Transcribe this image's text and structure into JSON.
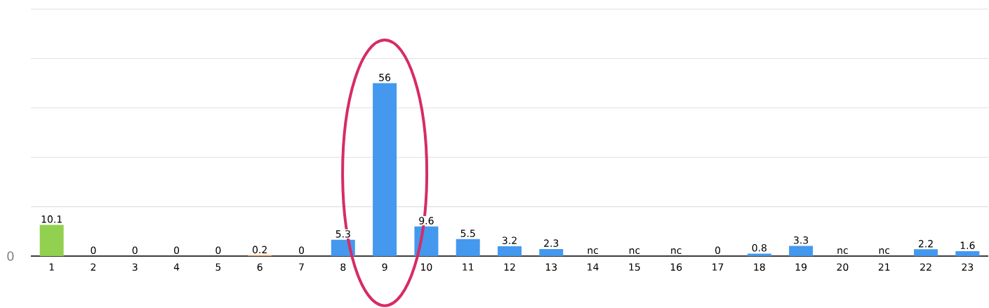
{
  "chart_data": {
    "type": "bar",
    "categories": [
      "1",
      "2",
      "3",
      "4",
      "5",
      "6",
      "7",
      "8",
      "9",
      "10",
      "11",
      "12",
      "13",
      "14",
      "15",
      "16",
      "17",
      "18",
      "19",
      "20",
      "21",
      "22",
      "23"
    ],
    "values": [
      10.1,
      0,
      0,
      0,
      0,
      0.2,
      0,
      5.3,
      56,
      9.6,
      5.5,
      3.2,
      2.3,
      null,
      null,
      null,
      0,
      0.8,
      3.3,
      null,
      null,
      2.2,
      1.6
    ],
    "value_labels": [
      "10.1",
      "0",
      "0",
      "0",
      "0",
      "0.2",
      "0",
      "5.3",
      "56",
      "9.6",
      "5.5",
      "3.2",
      "2.3",
      "nc",
      "nc",
      "nc",
      "0",
      "0.8",
      "3.3",
      "nc",
      "nc",
      "2.2",
      "1.6"
    ],
    "colors": [
      "#92d050",
      "#4499ee",
      "#4499ee",
      "#4499ee",
      "#4499ee",
      "#e8802a",
      "#4499ee",
      "#4499ee",
      "#4499ee",
      "#4499ee",
      "#4499ee",
      "#4499ee",
      "#4499ee",
      "#4499ee",
      "#4499ee",
      "#4499ee",
      "#4499ee",
      "#4499ee",
      "#4499ee",
      "#4499ee",
      "#4499ee",
      "#4499ee",
      "#4499ee"
    ],
    "ylim": [
      0,
      80
    ],
    "yticks": [
      {
        "value": 0,
        "label": null
      },
      {
        "value": 16,
        "label": null
      },
      {
        "value": 32,
        "label": null
      },
      {
        "value": 48,
        "label": null
      },
      {
        "value": 64,
        "label": null
      },
      {
        "value": 80,
        "label": null
      }
    ],
    "grid": "y",
    "annotations": [
      "0"
    ]
  }
}
